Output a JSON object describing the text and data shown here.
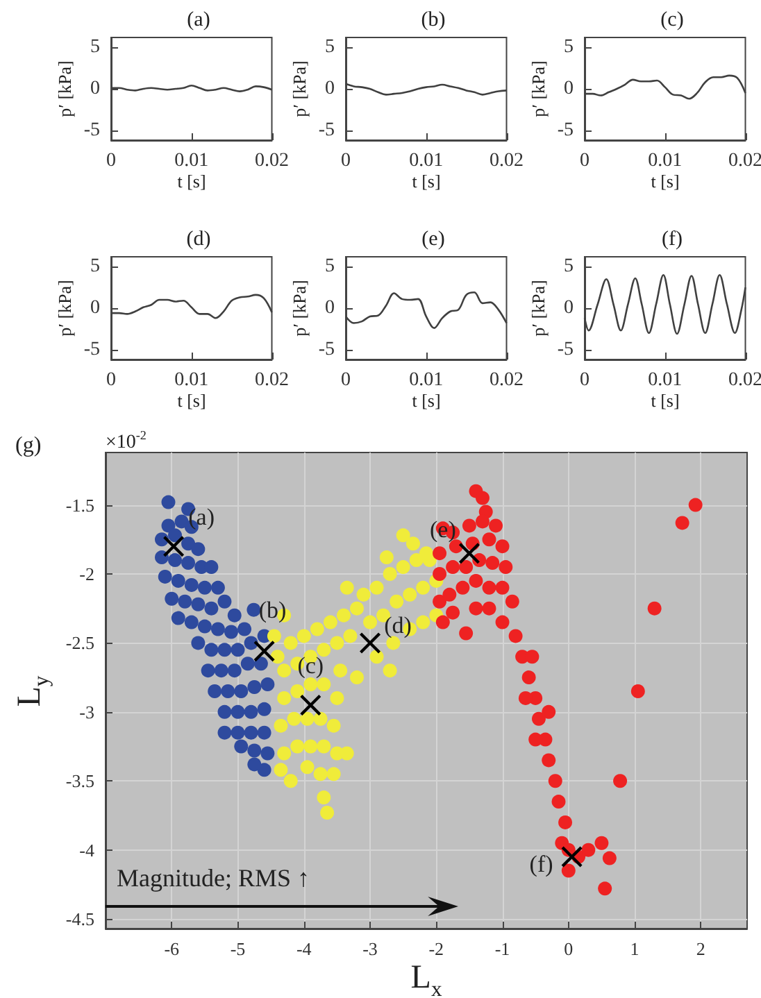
{
  "chart_data": [
    {
      "type": "line",
      "title": "(a)",
      "xlabel": "t [s]",
      "ylabel": "p′ [kPa]",
      "xlim": [
        0,
        0.02
      ],
      "xticks": [
        0,
        0.01,
        0.02
      ],
      "ylim": [
        -6.2,
        6.2
      ],
      "yticks": [
        -5,
        0,
        5
      ],
      "x": [
        0,
        0.001,
        0.002,
        0.003,
        0.004,
        0.005,
        0.006,
        0.007,
        0.008,
        0.009,
        0.01,
        0.011,
        0.012,
        0.013,
        0.014,
        0.015,
        0.016,
        0.017,
        0.018,
        0.019,
        0.02
      ],
      "series": [
        {
          "color": "#404040",
          "values": [
            0.1,
            0.1,
            -0.1,
            -0.2,
            0,
            0.1,
            0,
            -0.1,
            0,
            0.1,
            0.4,
            0.1,
            -0.2,
            -0.1,
            0.1,
            -0.1,
            -0.3,
            -0.1,
            0.3,
            0.2,
            -0.1
          ]
        }
      ]
    },
    {
      "type": "line",
      "title": "(b)",
      "xlabel": "t [s]",
      "ylabel": "p′ [kPa]",
      "xlim": [
        0,
        0.02
      ],
      "xticks": [
        0,
        0.01,
        0.02
      ],
      "ylim": [
        -6.2,
        6.2
      ],
      "yticks": [
        -5,
        0,
        5
      ],
      "x": [
        0,
        0.001,
        0.002,
        0.003,
        0.004,
        0.005,
        0.006,
        0.007,
        0.008,
        0.009,
        0.01,
        0.011,
        0.012,
        0.013,
        0.014,
        0.015,
        0.016,
        0.017,
        0.018,
        0.019,
        0.02
      ],
      "series": [
        {
          "color": "#404040",
          "values": [
            0.6,
            0.3,
            0.2,
            0,
            -0.4,
            -0.7,
            -0.6,
            -0.5,
            -0.3,
            0,
            0.2,
            0.3,
            0.5,
            0.3,
            0.1,
            -0.2,
            -0.4,
            -0.7,
            -0.5,
            -0.3,
            -0.2
          ]
        }
      ]
    },
    {
      "type": "line",
      "title": "(c)",
      "xlabel": "t [s]",
      "ylabel": "p′ [kPa]",
      "xlim": [
        0,
        0.02
      ],
      "xticks": [
        0,
        0.01,
        0.02
      ],
      "ylim": [
        -6.2,
        6.2
      ],
      "yticks": [
        -5,
        0,
        5
      ],
      "x": [
        0,
        0.001,
        0.002,
        0.003,
        0.004,
        0.005,
        0.006,
        0.007,
        0.008,
        0.009,
        0.01,
        0.011,
        0.012,
        0.013,
        0.014,
        0.015,
        0.016,
        0.017,
        0.018,
        0.019,
        0.02
      ],
      "series": [
        {
          "color": "#404040",
          "values": [
            -0.6,
            -0.6,
            -0.8,
            -0.4,
            0,
            0.5,
            1.1,
            0.9,
            0.9,
            1.0,
            0.2,
            -0.7,
            -0.8,
            -1.2,
            -0.5,
            0.8,
            1.4,
            1.4,
            1.6,
            1.3,
            -0.5
          ]
        }
      ]
    },
    {
      "type": "line",
      "title": "(d)",
      "xlabel": "t [s]",
      "ylabel": "p′ [kPa]",
      "xlim": [
        0,
        0.02
      ],
      "xticks": [
        0,
        0.01,
        0.02
      ],
      "ylim": [
        -6.2,
        6.2
      ],
      "yticks": [
        -5,
        0,
        5
      ],
      "x": [
        0,
        0.001,
        0.002,
        0.003,
        0.004,
        0.005,
        0.006,
        0.007,
        0.008,
        0.009,
        0.01,
        0.011,
        0.012,
        0.013,
        0.014,
        0.015,
        0.016,
        0.017,
        0.018,
        0.019,
        0.02
      ],
      "series": [
        {
          "color": "#404040",
          "values": [
            -0.6,
            -0.6,
            -0.7,
            -0.4,
            0.1,
            0.4,
            1.0,
            1.0,
            0.8,
            0.9,
            0.1,
            -0.7,
            -0.7,
            -1.2,
            -0.4,
            0.9,
            1.3,
            1.4,
            1.6,
            1.2,
            -0.5
          ]
        }
      ]
    },
    {
      "type": "line",
      "title": "(e)",
      "xlabel": "t [s]",
      "ylabel": "p′ [kPa]",
      "xlim": [
        0,
        0.02
      ],
      "xticks": [
        0,
        0.01,
        0.02
      ],
      "ylim": [
        -6.2,
        6.2
      ],
      "yticks": [
        -5,
        0,
        5
      ],
      "x": [
        0,
        0.001,
        0.002,
        0.003,
        0.004,
        0.005,
        0.006,
        0.007,
        0.008,
        0.009,
        0.01,
        0.011,
        0.012,
        0.013,
        0.014,
        0.015,
        0.016,
        0.017,
        0.018,
        0.019,
        0.02
      ],
      "series": [
        {
          "color": "#404040",
          "values": [
            -1.0,
            -1.8,
            -1.6,
            -1.0,
            -0.9,
            0.3,
            1.8,
            1.1,
            1.0,
            1.1,
            -1.0,
            -2.4,
            -1.2,
            -0.4,
            -0.2,
            1.6,
            1.9,
            0.6,
            0.7,
            -0.2,
            -1.8
          ]
        }
      ]
    },
    {
      "type": "line",
      "title": "(f)",
      "xlabel": "t [s]",
      "ylabel": "p′ [kPa]",
      "xlim": [
        0,
        0.02
      ],
      "xticks": [
        0,
        0.01,
        0.02
      ],
      "ylim": [
        -6.2,
        6.2
      ],
      "yticks": [
        -5,
        0,
        5
      ],
      "x": [
        0,
        0.0005,
        0.0016,
        0.0027,
        0.0036,
        0.0045,
        0.0054,
        0.0063,
        0.0071,
        0.008,
        0.0089,
        0.0098,
        0.0106,
        0.0115,
        0.0124,
        0.0133,
        0.0141,
        0.015,
        0.0159,
        0.0168,
        0.0177,
        0.0187,
        0.0195,
        0.02
      ],
      "series": [
        {
          "color": "#404040",
          "values": [
            -1.2,
            -2.7,
            0.4,
            3.5,
            0.4,
            -2.7,
            0.5,
            3.6,
            0.5,
            -3.0,
            0.5,
            4.0,
            0.5,
            -3.1,
            0.4,
            3.9,
            0.5,
            -3.0,
            0.5,
            4.0,
            0.5,
            -3.0,
            -0.2,
            2.5
          ]
        }
      ]
    },
    {
      "type": "scatter",
      "title": "(g)",
      "xlabel": "L$_{x}$",
      "ylabel": "L$_{y}$",
      "xlim": [
        -7,
        2.7
      ],
      "xticks": [
        -6,
        -5,
        -4,
        -3,
        -2,
        -1,
        0,
        1,
        2
      ],
      "ylim": [
        -4.57,
        -1.12
      ],
      "yticks": [
        -4.5,
        -4,
        -3.5,
        -3,
        -2.5,
        -2,
        -1.5
      ],
      "grid": true,
      "marker": "circle",
      "annotations": [
        "×10$^{-2}$",
        "Magnitude; RMS ↑",
        {
          "text": "(a)",
          "x": -5.97,
          "y": -1.8
        },
        {
          "text": "(b)",
          "x": -4.6,
          "y": -2.56
        },
        {
          "text": "(c)",
          "x": -3.9,
          "y": -2.95
        },
        {
          "text": "(d)",
          "x": -3.0,
          "y": -2.5
        },
        {
          "text": "(e)",
          "x": -1.5,
          "y": -1.85
        },
        {
          "text": "(f)",
          "x": 0.05,
          "y": -4.05
        }
      ],
      "series": [
        {
          "color": "#2e4a9e",
          "x": [
            -6.05,
            -5.75,
            -5.85,
            -6.05,
            -5.7,
            -6.15,
            -5.95,
            -5.75,
            -5.6,
            -6.15,
            -5.95,
            -5.75,
            -5.55,
            -5.4,
            -6.1,
            -5.9,
            -5.7,
            -5.5,
            -5.3,
            -6.0,
            -5.8,
            -5.6,
            -5.4,
            -5.2,
            -5.05,
            -5.9,
            -5.7,
            -5.5,
            -5.3,
            -5.1,
            -4.9,
            -4.76,
            -5.6,
            -5.4,
            -5.2,
            -5.0,
            -4.8,
            -4.6,
            -5.45,
            -5.25,
            -5.05,
            -4.85,
            -4.65,
            -5.35,
            -5.15,
            -4.95,
            -4.75,
            -4.55,
            -5.2,
            -5.0,
            -4.8,
            -4.6,
            -5.2,
            -5.0,
            -4.8,
            -4.6,
            -4.95,
            -4.75,
            -4.55,
            -4.6,
            -4.75
          ],
          "values": [
            -1.48,
            -1.53,
            -1.62,
            -1.65,
            -1.66,
            -1.75,
            -1.72,
            -1.78,
            -1.82,
            -1.88,
            -1.9,
            -1.92,
            -1.95,
            -1.95,
            -2.02,
            -2.05,
            -2.08,
            -2.1,
            -2.1,
            -2.18,
            -2.2,
            -2.22,
            -2.25,
            -2.2,
            -2.3,
            -2.32,
            -2.35,
            -2.38,
            -2.4,
            -2.42,
            -2.4,
            -2.26,
            -2.5,
            -2.55,
            -2.55,
            -2.55,
            -2.5,
            -2.45,
            -2.7,
            -2.7,
            -2.7,
            -2.65,
            -2.65,
            -2.85,
            -2.85,
            -2.85,
            -2.82,
            -2.8,
            -3.0,
            -3.0,
            -3.0,
            -2.98,
            -3.15,
            -3.15,
            -3.15,
            -3.15,
            -3.25,
            -3.28,
            -3.3,
            -3.42,
            -3.38
          ]
        },
        {
          "color": "#f0ec3a",
          "x": [
            -4.45,
            -4.3,
            -4.2,
            -4.4,
            -4.0,
            -3.8,
            -3.6,
            -3.4,
            -3.2,
            -3.35,
            -3.1,
            -2.9,
            -2.7,
            -2.5,
            -2.3,
            -2.1,
            -2.5,
            -2.35,
            -2.15,
            -2.75,
            -4.3,
            -4.1,
            -3.9,
            -3.7,
            -3.5,
            -3.3,
            -3.0,
            -2.8,
            -2.6,
            -2.4,
            -2.2,
            -2.0,
            -2.0,
            -2.2,
            -2.4,
            -2.65,
            -2.9,
            -2.7,
            -3.2,
            -3.45,
            -4.3,
            -4.1,
            -3.9,
            -3.7,
            -3.5,
            -4.35,
            -4.15,
            -3.95,
            -3.75,
            -3.55,
            -4.3,
            -4.1,
            -3.9,
            -3.7,
            -3.5,
            -3.35,
            -4.35,
            -4.2,
            -3.95,
            -3.75,
            -3.55,
            -3.7,
            -3.65
          ],
          "values": [
            -2.45,
            -2.3,
            -2.5,
            -2.6,
            -2.45,
            -2.4,
            -2.35,
            -2.3,
            -2.25,
            -2.1,
            -2.15,
            -2.1,
            -2.0,
            -1.95,
            -1.9,
            -1.9,
            -1.72,
            -1.78,
            -1.85,
            -1.88,
            -2.7,
            -2.65,
            -2.6,
            -2.55,
            -2.5,
            -2.45,
            -2.35,
            -2.3,
            -2.2,
            -2.15,
            -2.1,
            -2.05,
            -2.3,
            -2.35,
            -2.4,
            -2.5,
            -2.6,
            -2.7,
            -2.75,
            -2.7,
            -2.9,
            -2.85,
            -2.8,
            -2.8,
            -2.9,
            -3.1,
            -3.05,
            -3.05,
            -3.05,
            -3.1,
            -3.3,
            -3.25,
            -3.25,
            -3.25,
            -3.3,
            -3.3,
            -3.42,
            -3.5,
            -3.4,
            -3.45,
            -3.45,
            -3.62,
            -3.73
          ]
        },
        {
          "color": "#ee2222",
          "x": [
            -1.4,
            -1.3,
            -1.25,
            -1.9,
            -1.75,
            -1.5,
            -1.3,
            -1.1,
            -1.95,
            -1.7,
            -1.45,
            -1.2,
            -1.0,
            -1.95,
            -1.75,
            -1.55,
            -1.35,
            -1.15,
            -0.95,
            -1.95,
            -1.8,
            -1.6,
            -1.4,
            -1.2,
            -1.0,
            -1.9,
            -1.75,
            -1.55,
            -1.4,
            -1.2,
            -1.0,
            -0.85,
            -0.8,
            -0.7,
            -0.6,
            -0.5,
            -0.45,
            -0.35,
            -0.3,
            -0.2,
            -0.15,
            -0.05,
            -0.1,
            0.0,
            0.0,
            0.15,
            0.3,
            0.5,
            0.62,
            0.55,
            0.78,
            1.05,
            1.3,
            1.72,
            1.92,
            -0.65,
            -0.5,
            -0.55,
            -0.3
          ],
          "values": [
            -1.4,
            -1.45,
            -1.55,
            -1.67,
            -1.7,
            -1.65,
            -1.62,
            -1.65,
            -1.85,
            -1.8,
            -1.78,
            -1.75,
            -1.8,
            -2.0,
            -1.95,
            -1.95,
            -1.9,
            -1.92,
            -1.95,
            -2.2,
            -2.15,
            -2.1,
            -2.05,
            -2.1,
            -2.1,
            -2.35,
            -2.28,
            -2.43,
            -2.25,
            -2.25,
            -2.35,
            -2.2,
            -2.45,
            -2.6,
            -2.75,
            -2.9,
            -3.05,
            -3.2,
            -3.35,
            -3.5,
            -3.65,
            -3.8,
            -3.95,
            -4.0,
            -4.15,
            -4.05,
            -4.0,
            -3.95,
            -4.06,
            -4.28,
            -3.5,
            -2.85,
            -2.25,
            -1.63,
            -1.5,
            -2.9,
            -3.2,
            -2.6,
            -3.0
          ]
        },
        {
          "color": "#000000",
          "marker": "cross",
          "x": [
            -5.97,
            -4.6,
            -3.9,
            -3.0,
            -1.5,
            0.05
          ],
          "values": [
            -1.8,
            -2.56,
            -2.95,
            -2.5,
            -1.85,
            -4.05
          ]
        }
      ]
    }
  ]
}
